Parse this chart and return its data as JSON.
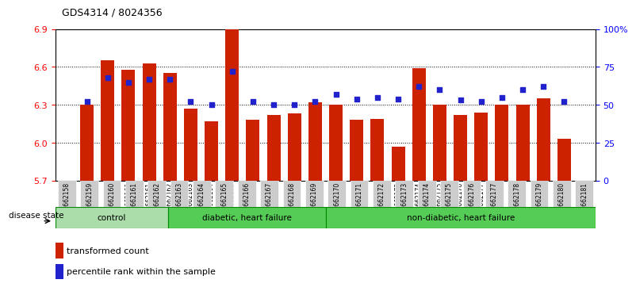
{
  "title": "GDS4314 / 8024356",
  "samples": [
    "GSM662158",
    "GSM662159",
    "GSM662160",
    "GSM662161",
    "GSM662162",
    "GSM662163",
    "GSM662164",
    "GSM662165",
    "GSM662166",
    "GSM662167",
    "GSM662168",
    "GSM662169",
    "GSM662170",
    "GSM662171",
    "GSM662172",
    "GSM662173",
    "GSM662174",
    "GSM662175",
    "GSM662176",
    "GSM662177",
    "GSM662178",
    "GSM662179",
    "GSM662180",
    "GSM662181"
  ],
  "red_values": [
    6.3,
    6.65,
    6.58,
    6.63,
    6.55,
    6.27,
    6.17,
    6.9,
    6.18,
    6.22,
    6.23,
    6.32,
    6.3,
    6.18,
    6.19,
    5.97,
    6.59,
    6.3,
    6.22,
    6.24,
    6.3,
    6.3,
    6.35,
    6.03
  ],
  "blue_values": [
    52,
    68,
    65,
    67,
    67,
    52,
    50,
    72,
    52,
    50,
    50,
    52,
    57,
    54,
    55,
    54,
    62,
    60,
    53,
    52,
    55,
    60,
    62,
    52
  ],
  "y_min": 5.7,
  "y_max": 6.9,
  "y_ticks": [
    5.7,
    6.0,
    6.3,
    6.6,
    6.9
  ],
  "y2_ticks": [
    0,
    25,
    50,
    75,
    100
  ],
  "bar_color": "#cc2200",
  "blue_color": "#2222cc",
  "group_control_color": "#aaddaa",
  "group_other_color": "#55cc55",
  "xtick_bg_color": "#cccccc",
  "grid_color": "#000000",
  "group_border_color": "#008800"
}
